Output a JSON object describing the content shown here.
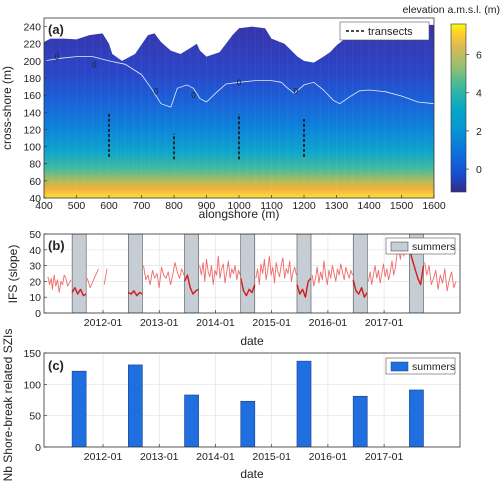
{
  "chart_data": [
    {
      "panel": "(a)",
      "type": "heatmap",
      "xlabel": "alongshore (m)",
      "ylabel": "cross-shore (m)",
      "xlim": [
        400,
        1600
      ],
      "ylim": [
        40,
        250
      ],
      "xticks": [
        400,
        500,
        600,
        700,
        800,
        900,
        1000,
        1100,
        1200,
        1300,
        1400,
        1500,
        1600
      ],
      "yticks": [
        40,
        60,
        80,
        100,
        120,
        140,
        160,
        180,
        200,
        220,
        240
      ],
      "colorbar": {
        "label": "elevation a.m.s.l. (m)",
        "ticks": [
          0,
          2,
          4,
          6
        ],
        "range": [
          -1.2,
          7.6
        ],
        "colormap": "parula"
      },
      "contour_level": 0,
      "contour_label": "0",
      "contour_line": {
        "x": [
          400,
          450,
          500,
          550,
          600,
          650,
          700,
          730,
          760,
          790,
          810,
          840,
          860,
          880,
          900,
          930,
          960,
          1000,
          1050,
          1100,
          1130,
          1150,
          1170,
          1200,
          1230,
          1260,
          1290,
          1310,
          1340,
          1370,
          1400,
          1450,
          1500,
          1550,
          1600
        ],
        "y": [
          200,
          203,
          205,
          205,
          200,
          196,
          184,
          168,
          150,
          146,
          168,
          172,
          168,
          156,
          152,
          163,
          173,
          175,
          177,
          177,
          175,
          168,
          162,
          172,
          175,
          166,
          154,
          150,
          158,
          165,
          166,
          164,
          159,
          152,
          150
        ]
      },
      "contour_label_points": [
        {
          "x": 440,
          "y": 205
        },
        {
          "x": 555,
          "y": 196
        },
        {
          "x": 745,
          "y": 165
        },
        {
          "x": 860,
          "y": 160
        },
        {
          "x": 1000,
          "y": 175
        },
        {
          "x": 1175,
          "y": 165
        }
      ],
      "transects": [
        {
          "x": 600,
          "y": [
            88,
            138
          ]
        },
        {
          "x": 800,
          "y": [
            85,
            115
          ]
        },
        {
          "x": 1000,
          "y": [
            85,
            138
          ]
        },
        {
          "x": 1200,
          "y": [
            88,
            132
          ]
        }
      ],
      "data_extent_top": {
        "x": [
          400,
          420,
          460,
          500,
          540,
          580,
          600,
          610,
          640,
          680,
          720,
          740,
          760,
          790,
          820,
          850,
          870,
          880,
          900,
          940,
          980,
          1000,
          1040,
          1080,
          1100,
          1140,
          1180,
          1200,
          1230,
          1260,
          1280,
          1300,
          1340,
          1380,
          1420,
          1460,
          1500,
          1540,
          1580,
          1600
        ],
        "y": [
          222,
          226,
          226,
          225,
          230,
          232,
          220,
          208,
          200,
          208,
          230,
          232,
          222,
          212,
          208,
          215,
          220,
          212,
          205,
          210,
          230,
          238,
          240,
          238,
          226,
          220,
          205,
          200,
          198,
          205,
          210,
          218,
          230,
          235,
          236,
          238,
          240,
          240,
          242,
          242
        ]
      },
      "legend": {
        "label": "transects",
        "position": "top-right"
      }
    },
    {
      "panel": "(b)",
      "type": "line",
      "ylabel": "IFS (slope)",
      "xlabel": "date",
      "ylim": [
        0,
        50
      ],
      "yticks": [
        0,
        10,
        20,
        30,
        40,
        50
      ],
      "xlim": [
        2010.95,
        2018.35
      ],
      "xticks": [
        "2012-01",
        "2013-01",
        "2014-01",
        "2015-01",
        "2016-01",
        "2017-01"
      ],
      "grid": true,
      "legend": {
        "label": "summers",
        "position": "top-right"
      },
      "summers": [
        [
          2011.45,
          2011.7
        ],
        [
          2012.45,
          2012.7
        ],
        [
          2013.45,
          2013.7
        ],
        [
          2014.45,
          2014.7
        ],
        [
          2015.45,
          2015.7
        ],
        [
          2016.45,
          2016.7
        ],
        [
          2017.45,
          2017.7
        ]
      ],
      "series": [
        {
          "x": [
            2011.02,
            2011.05,
            2011.08,
            2011.1,
            2011.13,
            2011.16,
            2011.19,
            2011.22,
            2011.25,
            2011.28,
            2011.31,
            2011.34,
            2011.37,
            2011.4,
            2011.43
          ],
          "y": [
            23,
            18,
            22,
            15,
            24,
            17,
            21,
            13,
            20,
            18,
            24,
            22,
            17,
            19,
            21
          ]
        },
        {
          "x": [
            2011.72,
            2011.77,
            2011.82,
            2011.87,
            2011.92
          ],
          "y": [
            22,
            16,
            20,
            24,
            28
          ]
        },
        {
          "x": [
            2012.02,
            2012.07
          ],
          "y": [
            18,
            28
          ]
        },
        {
          "x": [
            2012.72,
            2012.76,
            2012.8,
            2012.84,
            2012.88,
            2012.92,
            2012.96,
            2013.0,
            2013.04,
            2013.08,
            2013.12,
            2013.16,
            2013.2,
            2013.24,
            2013.28,
            2013.32,
            2013.36,
            2013.4,
            2013.44
          ],
          "y": [
            30,
            21,
            24,
            18,
            27,
            22,
            25,
            16,
            29,
            24,
            22,
            26,
            18,
            24,
            32,
            26,
            22,
            28,
            24
          ]
        },
        {
          "x": [
            2013.72,
            2013.75,
            2013.78,
            2013.81,
            2013.84,
            2013.87,
            2013.9,
            2013.93,
            2013.96,
            2013.99,
            2014.02,
            2014.05,
            2014.08,
            2014.11,
            2014.14,
            2014.17,
            2014.2,
            2014.23,
            2014.26,
            2014.29,
            2014.32,
            2014.35,
            2014.38,
            2014.41,
            2014.44
          ],
          "y": [
            30,
            24,
            32,
            20,
            34,
            26,
            23,
            30,
            18,
            27,
            24,
            36,
            22,
            28,
            31,
            19,
            26,
            33,
            22,
            28,
            25,
            30,
            21,
            27,
            24
          ]
        },
        {
          "x": [
            2014.72,
            2014.75,
            2014.78,
            2014.81,
            2014.84,
            2014.87,
            2014.9,
            2014.93,
            2014.96,
            2014.99,
            2015.02,
            2015.05,
            2015.08,
            2015.11,
            2015.14,
            2015.17,
            2015.2,
            2015.23,
            2015.26,
            2015.29,
            2015.32,
            2015.35,
            2015.38,
            2015.41,
            2015.44
          ],
          "y": [
            22,
            28,
            18,
            31,
            25,
            34,
            21,
            27,
            36,
            24,
            29,
            19,
            32,
            26,
            23,
            30,
            35,
            22,
            28,
            25,
            33,
            20,
            26,
            29,
            24
          ]
        },
        {
          "x": [
            2015.72,
            2015.75,
            2015.78,
            2015.81,
            2015.84,
            2015.87,
            2015.9,
            2015.93,
            2015.96,
            2015.99,
            2016.02,
            2016.05,
            2016.08,
            2016.11,
            2016.14,
            2016.17,
            2016.2,
            2016.23,
            2016.26,
            2016.29,
            2016.32,
            2016.35,
            2016.38,
            2016.41,
            2016.44
          ],
          "y": [
            24,
            17,
            22,
            29,
            19,
            26,
            21,
            33,
            24,
            18,
            27,
            22,
            30,
            25,
            20,
            28,
            24,
            31,
            26,
            21,
            29,
            25,
            22,
            27,
            24
          ]
        },
        {
          "x": [
            2016.72,
            2016.75,
            2016.78,
            2016.81,
            2016.84,
            2016.87,
            2016.9,
            2016.93,
            2016.96,
            2016.99,
            2017.02,
            2017.05,
            2017.08,
            2017.11,
            2017.14,
            2017.17,
            2017.2,
            2017.23,
            2017.26,
            2017.29,
            2017.32,
            2017.35,
            2017.38,
            2017.41,
            2017.44
          ],
          "y": [
            20,
            26,
            18,
            24,
            30,
            22,
            27,
            19,
            25,
            31,
            23,
            28,
            21,
            26,
            33,
            24,
            29,
            37,
            40,
            34,
            42,
            36,
            44,
            38,
            41
          ]
        },
        {
          "x": [
            2017.72,
            2017.76,
            2017.8,
            2017.84,
            2017.88,
            2017.92,
            2017.96,
            2018.0,
            2018.04,
            2018.08,
            2018.12,
            2018.16,
            2018.2,
            2018.24,
            2018.28
          ],
          "y": [
            32,
            24,
            30,
            18,
            22,
            27,
            15,
            24,
            19,
            28,
            14,
            21,
            26,
            16,
            20
          ]
        }
      ],
      "summer_series": [
        {
          "x": [
            2011.45,
            2011.5,
            2011.55,
            2011.6,
            2011.65,
            2011.7
          ],
          "y": [
            13,
            16,
            12,
            15,
            11,
            12
          ]
        },
        {
          "x": [
            2012.45,
            2012.5,
            2012.55,
            2012.6,
            2012.65,
            2012.7
          ],
          "y": [
            13,
            12,
            14,
            11,
            13,
            12
          ]
        },
        {
          "x": [
            2013.45,
            2013.5,
            2013.55,
            2013.6,
            2013.65,
            2013.7
          ],
          "y": [
            20,
            24,
            16,
            12,
            14,
            15
          ]
        },
        {
          "x": [
            2014.45,
            2014.5,
            2014.55,
            2014.6,
            2014.65,
            2014.7
          ],
          "y": [
            22,
            14,
            11,
            15,
            13,
            18
          ]
        },
        {
          "x": [
            2015.45,
            2015.5,
            2015.55,
            2015.6,
            2015.65,
            2015.7
          ],
          "y": [
            18,
            12,
            15,
            10,
            20,
            22
          ]
        },
        {
          "x": [
            2016.45,
            2016.5,
            2016.55,
            2016.6,
            2016.65,
            2016.7
          ],
          "y": [
            21,
            14,
            12,
            16,
            10,
            13
          ]
        },
        {
          "x": [
            2017.45,
            2017.5,
            2017.55,
            2017.6,
            2017.65,
            2017.7
          ],
          "y": [
            41,
            34,
            28,
            22,
            18,
            30
          ]
        }
      ],
      "colors": {
        "series": "#f06a6a",
        "summer_series": "#d41a1a",
        "summer_band": "#c6cdd4"
      }
    },
    {
      "panel": "(c)",
      "type": "bar",
      "ylabel": "Nb Shore-break related SZIs",
      "xlabel": "date",
      "ylim": [
        0,
        150
      ],
      "yticks": [
        0,
        50,
        100,
        150
      ],
      "xlim": [
        2010.95,
        2018.35
      ],
      "xticks": [
        "2012-01",
        "2013-01",
        "2014-01",
        "2015-01",
        "2016-01",
        "2017-01"
      ],
      "grid": true,
      "legend": {
        "label": "summers",
        "position": "top-right"
      },
      "bar_x": [
        2011.575,
        2012.575,
        2013.575,
        2014.575,
        2015.575,
        2016.575,
        2017.575
      ],
      "values": [
        121,
        131,
        83,
        73,
        137,
        81,
        91
      ],
      "colors": {
        "bar": "#1f6fe0"
      }
    }
  ]
}
